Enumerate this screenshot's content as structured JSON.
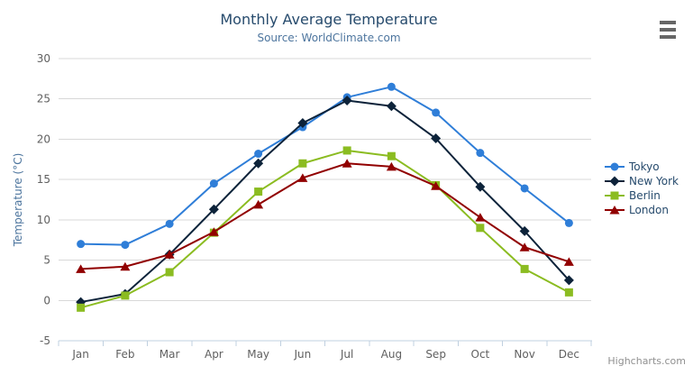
{
  "header": {
    "title": "Monthly Average Temperature",
    "subtitle": "Source: WorldClimate.com"
  },
  "credits": {
    "label": "Highcharts.com"
  },
  "context_menu": {
    "icon": "hamburger-icon"
  },
  "theme": {
    "title-color": "#274b6d",
    "subtitle-color": "#4d759e",
    "legend-color": "#274b6d",
    "axis-label-color": "#606060",
    "axis-title-color": "#4d759e",
    "grid-color": "#d8d8d8",
    "axis-line-color": "#c0d0e0",
    "credits-color": "#909090",
    "hamburger-color": "#666666"
  },
  "chart_data": {
    "type": "line",
    "title": "Monthly Average Temperature",
    "subtitle": "Source: WorldClimate.com",
    "xlabel": "",
    "ylabel": "Temperature (°C)",
    "ylim": [
      -5,
      30
    ],
    "yticks": [
      -5,
      0,
      5,
      10,
      15,
      20,
      25,
      30
    ],
    "grid": true,
    "legend_position": "right",
    "categories": [
      "Jan",
      "Feb",
      "Mar",
      "Apr",
      "May",
      "Jun",
      "Jul",
      "Aug",
      "Sep",
      "Oct",
      "Nov",
      "Dec"
    ],
    "series": [
      {
        "name": "Tokyo",
        "color": "#2f7ed8",
        "marker": "circle",
        "values": [
          7.0,
          6.9,
          9.5,
          14.5,
          18.2,
          21.5,
          25.2,
          26.5,
          23.3,
          18.3,
          13.9,
          9.6
        ]
      },
      {
        "name": "New York",
        "color": "#0d233a",
        "marker": "diamond",
        "values": [
          -0.2,
          0.8,
          5.7,
          11.3,
          17.0,
          22.0,
          24.8,
          24.1,
          20.1,
          14.1,
          8.6,
          2.5
        ]
      },
      {
        "name": "Berlin",
        "color": "#8bbc21",
        "marker": "square",
        "values": [
          -0.9,
          0.6,
          3.5,
          8.4,
          13.5,
          17.0,
          18.6,
          17.9,
          14.3,
          9.0,
          3.9,
          1.0
        ]
      },
      {
        "name": "London",
        "color": "#910000",
        "marker": "triangle",
        "values": [
          3.9,
          4.2,
          5.7,
          8.5,
          11.9,
          15.2,
          17.0,
          16.6,
          14.2,
          10.3,
          6.6,
          4.8
        ]
      }
    ]
  }
}
